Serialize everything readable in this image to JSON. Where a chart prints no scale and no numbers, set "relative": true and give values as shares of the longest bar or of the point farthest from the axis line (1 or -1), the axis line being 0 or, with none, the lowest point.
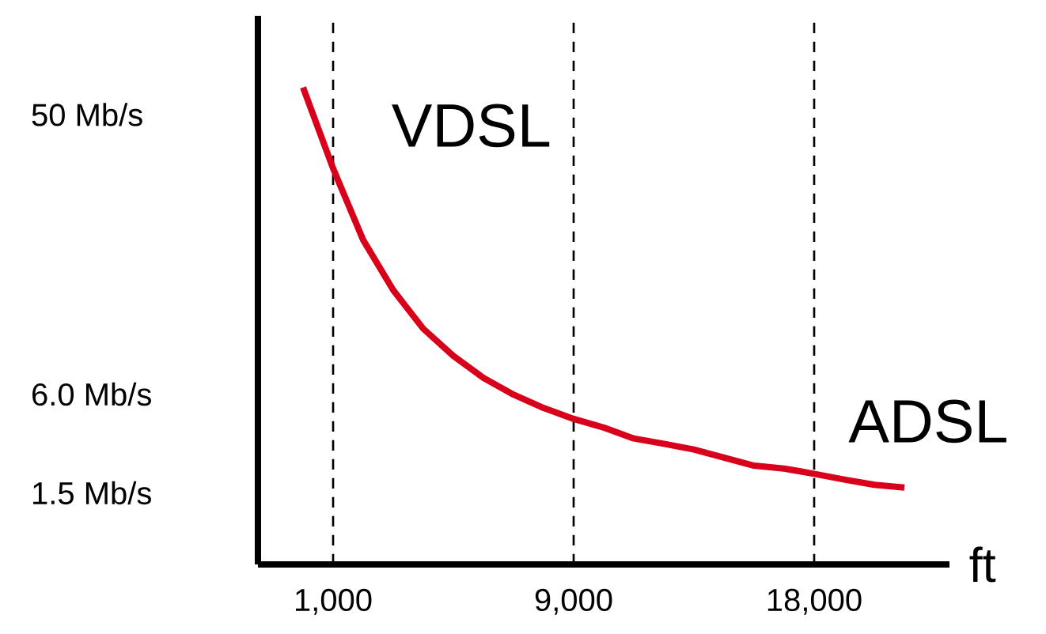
{
  "chart_data": {
    "type": "line",
    "xlabel": "ft",
    "relative": true,
    "categories": [
      null,
      "1,000",
      null,
      null,
      null,
      null,
      null,
      null,
      null,
      "9,000",
      null,
      null,
      null,
      null,
      null,
      null,
      null,
      "18,000",
      null,
      null,
      null
    ],
    "series": [
      {
        "color": "#d9001b",
        "values": [
          1,
          0.83,
          0.68,
          0.575,
          0.494,
          0.437,
          0.391,
          0.356,
          0.328,
          0.305,
          0.287,
          0.264,
          0.253,
          0.241,
          0.224,
          0.207,
          0.201,
          0.19,
          0.178,
          0.167,
          0.161
        ]
      }
    ],
    "annotations": [
      "50 Mb/s",
      "VDSL",
      "6.0 Mb/s",
      "ADSL",
      "1.5 Mb/s"
    ],
    "grid": "x",
    "marker": "none",
    "line_style": "solid"
  }
}
